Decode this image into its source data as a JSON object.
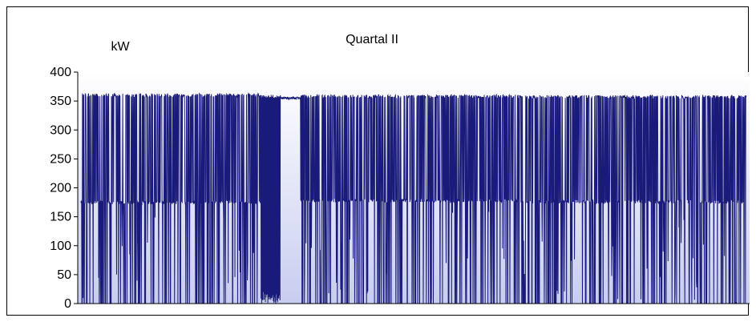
{
  "chart_data": {
    "type": "line",
    "title": "Quartal II",
    "ylabel": "kW",
    "xlabel": "",
    "ylim": [
      0,
      400
    ],
    "yticks": [
      0,
      50,
      100,
      150,
      200,
      250,
      300,
      350,
      400
    ],
    "grid": false,
    "legend": "none",
    "series_color": "#1a1a7a",
    "plot_bg_top": "#ffffff",
    "plot_bg_bottom": "#c8cdf0",
    "x_count": 2184,
    "level_high": 358,
    "level_low": 176,
    "segments": [
      {
        "from": 0.0,
        "to": 0.27,
        "pattern": "mixed",
        "high": 360,
        "low": 175
      },
      {
        "from": 0.27,
        "to": 0.3,
        "pattern": "dense",
        "high": 358,
        "low": 0
      },
      {
        "from": 0.3,
        "to": 0.33,
        "pattern": "flat",
        "high": 355,
        "low": 355
      },
      {
        "from": 0.33,
        "to": 0.66,
        "pattern": "mixed",
        "high": 358,
        "low": 178
      },
      {
        "from": 0.66,
        "to": 1.0,
        "pattern": "mixed",
        "high": 357,
        "low": 176
      }
    ]
  }
}
